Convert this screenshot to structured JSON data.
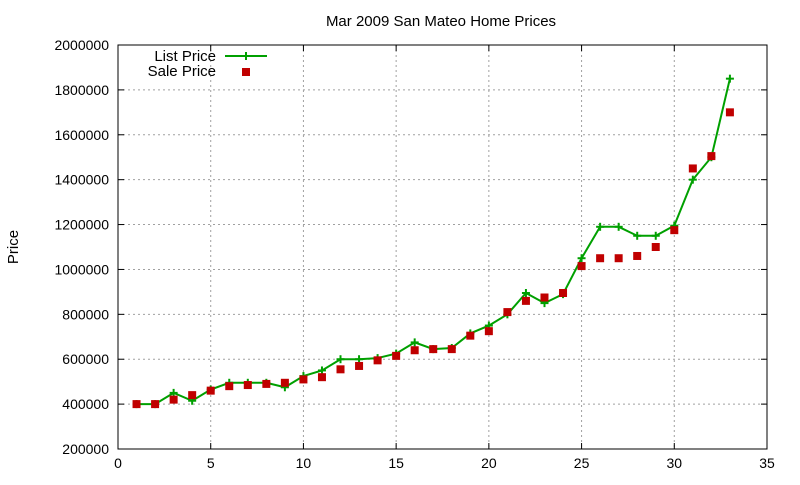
{
  "chart_data": {
    "type": "line",
    "title": "Mar 2009 San Mateo Home Prices",
    "xlabel": "",
    "ylabel": "Price",
    "xlim": [
      0,
      35
    ],
    "ylim": [
      200000,
      2000000
    ],
    "xticks": [
      0,
      5,
      10,
      15,
      20,
      25,
      30,
      35
    ],
    "yticks": [
      200000,
      400000,
      600000,
      800000,
      1000000,
      1200000,
      1400000,
      1600000,
      1800000,
      2000000
    ],
    "x_tick_labels": [
      "0",
      "5",
      "10",
      "15",
      "20",
      "25",
      "30",
      "35"
    ],
    "y_tick_labels": [
      "200000",
      "400000",
      "600000",
      "800000",
      "1000000",
      "1200000",
      "1400000",
      "1600000",
      "1800000",
      "2000000"
    ],
    "grid": true,
    "legend_position": "top-left",
    "x": [
      1,
      2,
      3,
      4,
      5,
      6,
      7,
      8,
      9,
      10,
      11,
      12,
      13,
      14,
      15,
      16,
      17,
      18,
      19,
      20,
      21,
      22,
      23,
      24,
      25,
      26,
      27,
      28,
      29,
      30,
      31,
      32,
      33
    ],
    "series": [
      {
        "name": "List Price",
        "style": "line-points",
        "marker": "plus",
        "color": "#00a000",
        "values": [
          400000,
          400000,
          450000,
          415000,
          465000,
          495000,
          495000,
          495000,
          475000,
          525000,
          550000,
          600000,
          600000,
          605000,
          625000,
          675000,
          645000,
          650000,
          715000,
          750000,
          800000,
          895000,
          850000,
          890000,
          1050000,
          1190000,
          1190000,
          1150000,
          1150000,
          1195000,
          1400000,
          1500000,
          1850000
        ]
      },
      {
        "name": "Sale Price",
        "style": "points",
        "marker": "square",
        "color": "#c00000",
        "values": [
          400000,
          400000,
          420000,
          440000,
          460000,
          480000,
          485000,
          490000,
          495000,
          510000,
          520000,
          555000,
          570000,
          595000,
          615000,
          640000,
          645000,
          645000,
          705000,
          725000,
          810000,
          860000,
          875000,
          895000,
          1015000,
          1050000,
          1050000,
          1060000,
          1100000,
          1175000,
          1450000,
          1505000,
          1700000
        ]
      }
    ]
  }
}
